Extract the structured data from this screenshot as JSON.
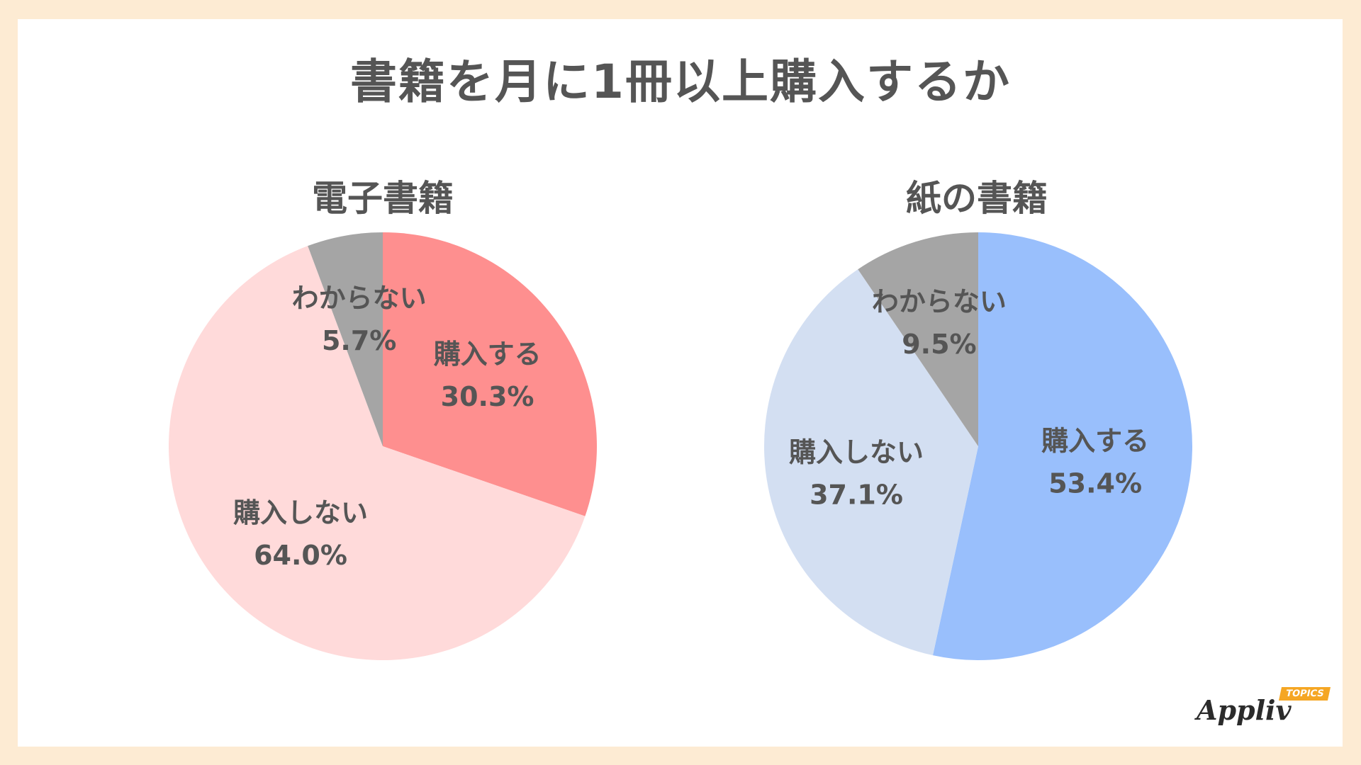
{
  "title": "書籍を月に1冊以上購入するか",
  "chart_data": [
    {
      "type": "pie",
      "title": "電子書籍",
      "slices": [
        {
          "label": "購入する",
          "value": 30.3,
          "display": "30.3%",
          "color": "#fe8f8f"
        },
        {
          "label": "購入しない",
          "value": 64.0,
          "display": "64.0%",
          "color": "#ffdada"
        },
        {
          "label": "わからない",
          "value": 5.7,
          "display": "5.7%",
          "color": "#a5a5a5"
        }
      ]
    },
    {
      "type": "pie",
      "title": "紙の書籍",
      "slices": [
        {
          "label": "購入する",
          "value": 53.4,
          "display": "53.4%",
          "color": "#99bffc"
        },
        {
          "label": "購入しない",
          "value": 37.1,
          "display": "37.1%",
          "color": "#d3dff2"
        },
        {
          "label": "わからない",
          "value": 9.5,
          "display": "9.5%",
          "color": "#a5a5a5"
        }
      ]
    }
  ],
  "logo": {
    "word": "Appliv",
    "badge": "TOPICS"
  }
}
